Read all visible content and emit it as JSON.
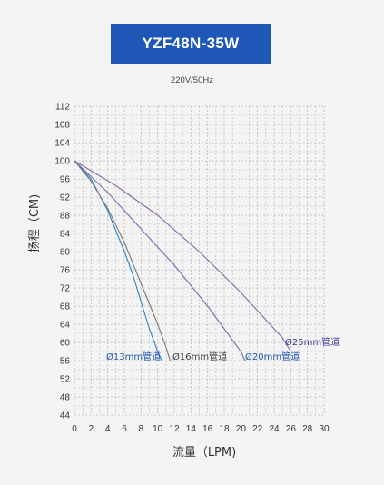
{
  "header": {
    "title": "YZF48N-35W",
    "subtitle": "220V/50Hz"
  },
  "chart_data": {
    "type": "line",
    "title": "YZF48N-35W",
    "subtitle": "220V/50Hz",
    "xlabel": "流量（LPM)",
    "ylabel": "扬程（CM)",
    "xlim": [
      0,
      30
    ],
    "ylim": [
      44,
      112
    ],
    "x_ticks": [
      0,
      2,
      4,
      6,
      8,
      10,
      12,
      14,
      16,
      18,
      20,
      22,
      24,
      26,
      28,
      30
    ],
    "y_ticks": [
      44,
      48,
      52,
      56,
      60,
      64,
      68,
      72,
      76,
      80,
      84,
      88,
      92,
      96,
      100,
      104,
      108,
      112
    ],
    "grid": true,
    "series": [
      {
        "name": "Ø13mm管道",
        "color": "#2a84c9",
        "x": [
          0,
          2,
          4,
          6,
          7,
          8,
          9,
          10,
          10.5
        ],
        "y": [
          100,
          96,
          89,
          80,
          75,
          69,
          63,
          58,
          56
        ]
      },
      {
        "name": "Ø16mm管道",
        "color": "#7a7a7a",
        "x": [
          0,
          2,
          4,
          6,
          8,
          10,
          11,
          11.5
        ],
        "y": [
          100,
          95.5,
          89.5,
          82,
          73,
          64,
          59,
          56
        ]
      },
      {
        "name": "Ø20mm管道",
        "color": "#7070b0",
        "x": [
          0,
          4,
          8,
          12,
          16,
          18,
          20,
          20.5
        ],
        "y": [
          100,
          93,
          85,
          77,
          68,
          63,
          58,
          56
        ]
      },
      {
        "name": "Ø25mm管道",
        "color": "#8a68a8",
        "x": [
          0,
          5,
          10,
          15,
          20,
          23,
          25,
          26
        ],
        "y": [
          100,
          94.5,
          88,
          80,
          71,
          65,
          61,
          58
        ]
      }
    ]
  }
}
